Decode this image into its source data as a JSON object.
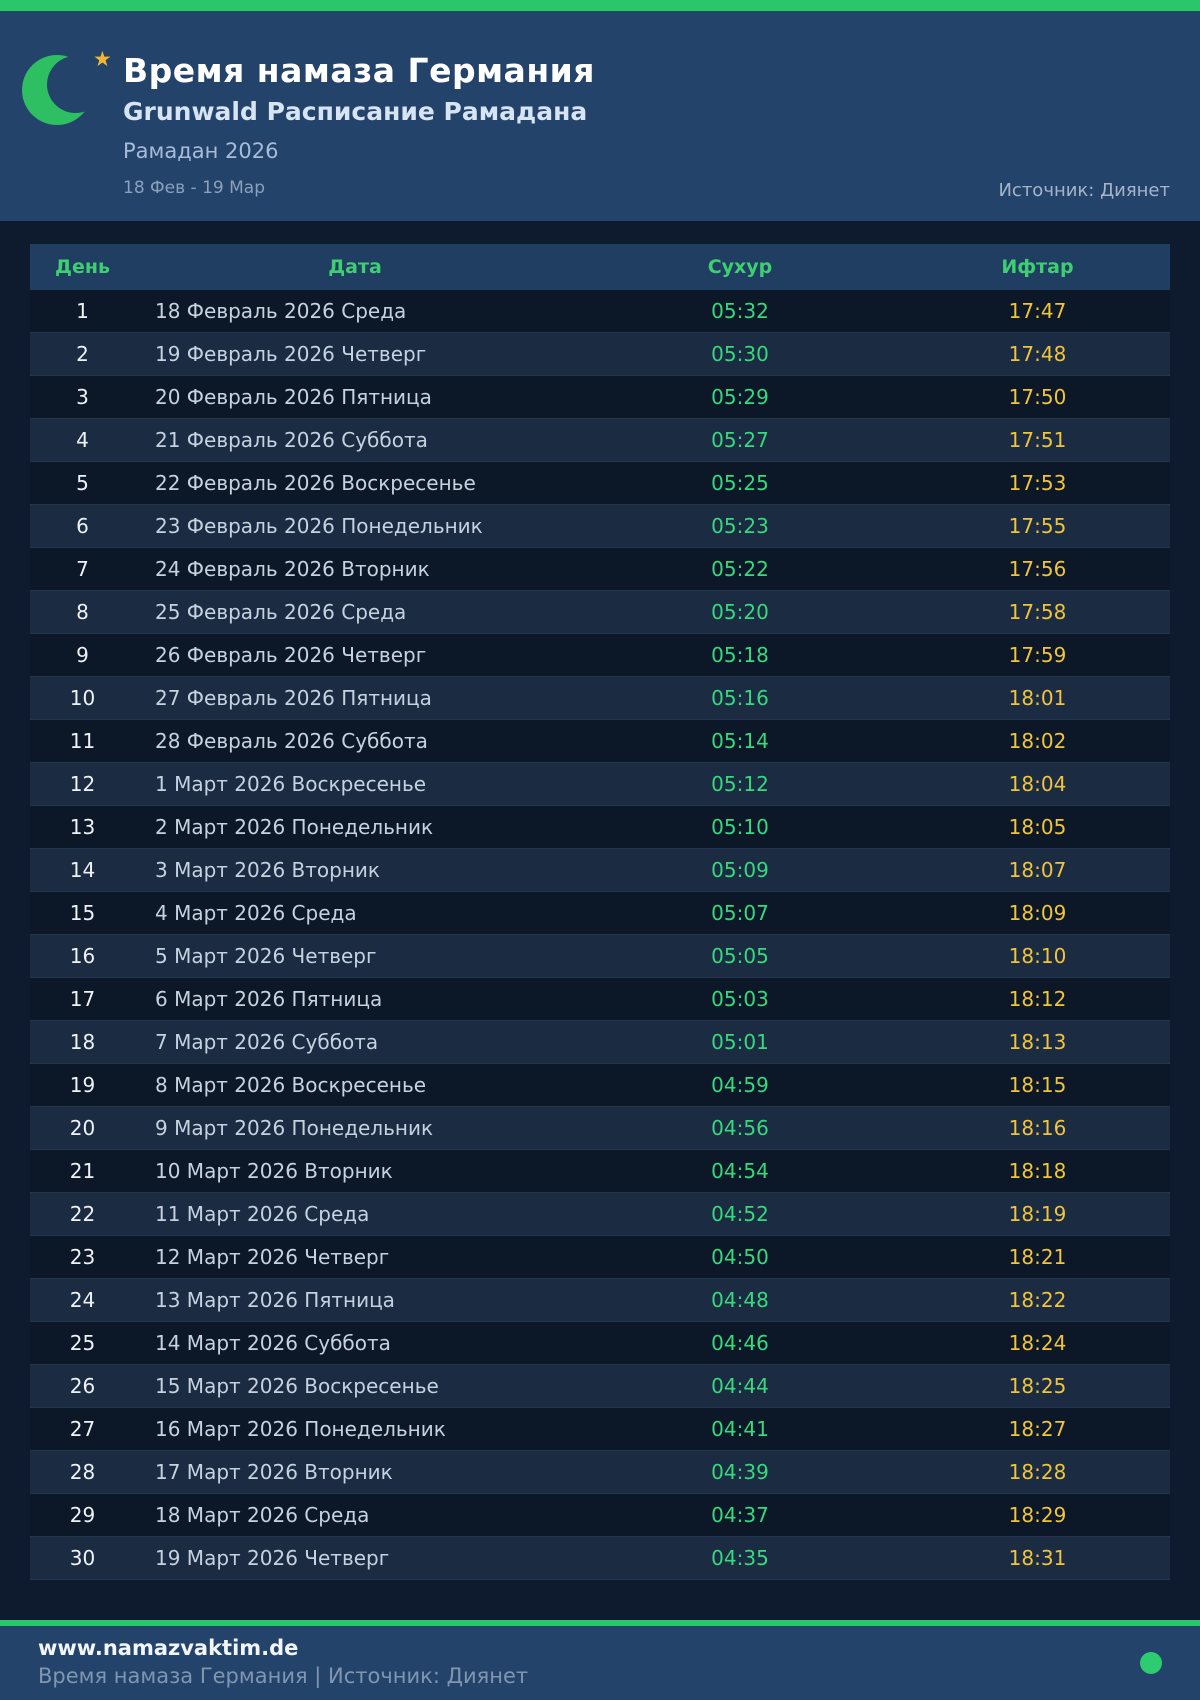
{
  "header": {
    "title": "Время намаза Германия",
    "subtitle": "Grunwald Расписание Рамадана",
    "season": "Рамадан 2026",
    "date_range": "18 Фев - 19 Мар",
    "source": "Источник: Диянет",
    "moon_icon": "crescent-moon",
    "star_icon": "star"
  },
  "table": {
    "columns": [
      "День",
      "Дата",
      "Сухур",
      "Ифтар"
    ],
    "rows": [
      {
        "day": "1",
        "date": "18 Февраль 2026 Среда",
        "suhur": "05:32",
        "iftar": "17:47"
      },
      {
        "day": "2",
        "date": "19 Февраль 2026 Четверг",
        "suhur": "05:30",
        "iftar": "17:48"
      },
      {
        "day": "3",
        "date": "20 Февраль 2026 Пятница",
        "suhur": "05:29",
        "iftar": "17:50"
      },
      {
        "day": "4",
        "date": "21 Февраль 2026 Суббота",
        "suhur": "05:27",
        "iftar": "17:51"
      },
      {
        "day": "5",
        "date": "22 Февраль 2026 Воскресенье",
        "suhur": "05:25",
        "iftar": "17:53"
      },
      {
        "day": "6",
        "date": "23 Февраль 2026 Понедельник",
        "suhur": "05:23",
        "iftar": "17:55"
      },
      {
        "day": "7",
        "date": "24 Февраль 2026 Вторник",
        "suhur": "05:22",
        "iftar": "17:56"
      },
      {
        "day": "8",
        "date": "25 Февраль 2026 Среда",
        "suhur": "05:20",
        "iftar": "17:58"
      },
      {
        "day": "9",
        "date": "26 Февраль 2026 Четверг",
        "suhur": "05:18",
        "iftar": "17:59"
      },
      {
        "day": "10",
        "date": "27 Февраль 2026 Пятница",
        "suhur": "05:16",
        "iftar": "18:01"
      },
      {
        "day": "11",
        "date": "28 Февраль 2026 Суббота",
        "suhur": "05:14",
        "iftar": "18:02"
      },
      {
        "day": "12",
        "date": "1 Март 2026 Воскресенье",
        "suhur": "05:12",
        "iftar": "18:04"
      },
      {
        "day": "13",
        "date": "2 Март 2026 Понедельник",
        "suhur": "05:10",
        "iftar": "18:05"
      },
      {
        "day": "14",
        "date": "3 Март 2026 Вторник",
        "suhur": "05:09",
        "iftar": "18:07"
      },
      {
        "day": "15",
        "date": "4 Март 2026 Среда",
        "suhur": "05:07",
        "iftar": "18:09"
      },
      {
        "day": "16",
        "date": "5 Март 2026 Четверг",
        "suhur": "05:05",
        "iftar": "18:10"
      },
      {
        "day": "17",
        "date": "6 Март 2026 Пятница",
        "suhur": "05:03",
        "iftar": "18:12"
      },
      {
        "day": "18",
        "date": "7 Март 2026 Суббота",
        "suhur": "05:01",
        "iftar": "18:13"
      },
      {
        "day": "19",
        "date": "8 Март 2026 Воскресенье",
        "suhur": "04:59",
        "iftar": "18:15"
      },
      {
        "day": "20",
        "date": "9 Март 2026 Понедельник",
        "suhur": "04:56",
        "iftar": "18:16"
      },
      {
        "day": "21",
        "date": "10 Март 2026 Вторник",
        "suhur": "04:54",
        "iftar": "18:18"
      },
      {
        "day": "22",
        "date": "11 Март 2026 Среда",
        "suhur": "04:52",
        "iftar": "18:19"
      },
      {
        "day": "23",
        "date": "12 Март 2026 Четверг",
        "suhur": "04:50",
        "iftar": "18:21"
      },
      {
        "day": "24",
        "date": "13 Март 2026 Пятница",
        "suhur": "04:48",
        "iftar": "18:22"
      },
      {
        "day": "25",
        "date": "14 Март 2026 Суббота",
        "suhur": "04:46",
        "iftar": "18:24"
      },
      {
        "day": "26",
        "date": "15 Март 2026 Воскресенье",
        "suhur": "04:44",
        "iftar": "18:25"
      },
      {
        "day": "27",
        "date": "16 Март 2026 Понедельник",
        "suhur": "04:41",
        "iftar": "18:27"
      },
      {
        "day": "28",
        "date": "17 Март 2026 Вторник",
        "suhur": "04:39",
        "iftar": "18:28"
      },
      {
        "day": "29",
        "date": "18 Март 2026 Среда",
        "suhur": "04:37",
        "iftar": "18:29"
      },
      {
        "day": "30",
        "date": "19 Март 2026 Четверг",
        "suhur": "04:35",
        "iftar": "18:31"
      }
    ]
  },
  "footer": {
    "website": "www.namazvaktim.de",
    "tagline": "Время намаза Германия | Источник: Диянет"
  },
  "colors": {
    "accent_green": "#2bc56a",
    "hero_background": "#24436b",
    "page_background": "#0e1b2e",
    "suhur_time_green": "#36d97c",
    "iftar_time_gold": "#f0c43c",
    "moon_green": "#2ebf63",
    "star_gold": "#f2b632",
    "status_dot_green": "#2ecc71"
  }
}
